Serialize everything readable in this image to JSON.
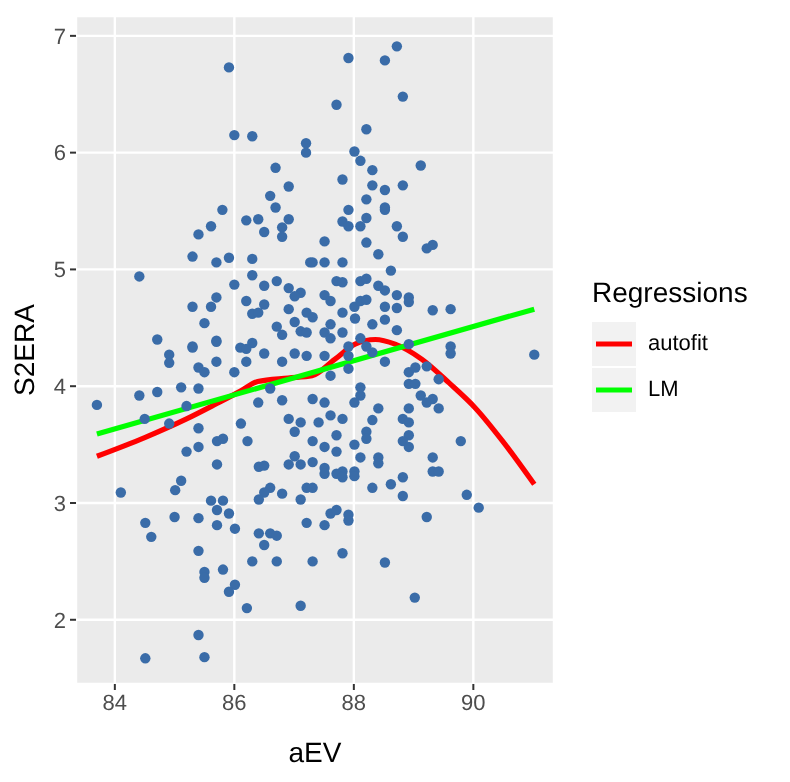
{
  "chart_data": {
    "type": "scatter",
    "xlabel": "aEV",
    "ylabel": "S2ERA",
    "legend_title": "Regressions",
    "legend": "right",
    "grid": true,
    "line_style": "solid",
    "xlim": [
      83.35,
      91.35
    ],
    "ylim": [
      1.45,
      7.17
    ],
    "xticks": [
      84,
      86,
      88,
      90
    ],
    "yticks": [
      2,
      3,
      4,
      5,
      6,
      7
    ],
    "series": [
      {
        "marker": "circle",
        "color": "#3a6ca8",
        "x": [
          85.91,
          86.0,
          86.3,
          87.2,
          87.2,
          86.69,
          86.91,
          86.6,
          86.69,
          85.8,
          86.91,
          86.2,
          86.4,
          85.61,
          86.5,
          86.8,
          86.8,
          85.4,
          85.3,
          85.7,
          85.91,
          86.3,
          87.27,
          84.41,
          86.0,
          86.3,
          86.5,
          86.71,
          86.91,
          87.11,
          87.01,
          85.3,
          85.7,
          85.61,
          86.2,
          86.5,
          86.3,
          86.4,
          86.91,
          87.21,
          85.5,
          87.01,
          86.71,
          87.11,
          84.71,
          85.3,
          85.7,
          86.1,
          86.3,
          86.8,
          88.72,
          87.91,
          88.52,
          88.82,
          87.71,
          88.21,
          88.01,
          88.11,
          88.31,
          89.12,
          87.81,
          88.31,
          88.52,
          88.82,
          88.21,
          88.52,
          88.52,
          87.91,
          87.81,
          87.91,
          88.11,
          88.21,
          88.72,
          88.82,
          87.51,
          88.21,
          89.22,
          89.32,
          88.41,
          87.31,
          87.51,
          87.81,
          88.62,
          87.71,
          87.81,
          88.11,
          88.21,
          88.41,
          88.52,
          88.72,
          88.92,
          88.92,
          87.51,
          87.61,
          88.01,
          88.11,
          88.21,
          88.52,
          88.72,
          89.32,
          89.62,
          87.31,
          87.81,
          88.02,
          88.52,
          88.31,
          87.61,
          88.72,
          87.21,
          87.51,
          87.81,
          87.61,
          88.11,
          88.92,
          87.91,
          85.3,
          84.91,
          84.91,
          85.7,
          86.2,
          85.4,
          85.5,
          85.7,
          86.0,
          86.2,
          86.5,
          86.8,
          87.01,
          87.21,
          83.7,
          84.41,
          84.71,
          85.11,
          85.4,
          84.5,
          84.91,
          85.2,
          85.4,
          85.71,
          85.81,
          86.11,
          86.22,
          86.4,
          86.6,
          86.8,
          86.91,
          87.01,
          87.11,
          87.01,
          86.91,
          87.11,
          87.21,
          85.2,
          85.4,
          85.71,
          85.11,
          86.41,
          86.5,
          86.6,
          86.5,
          86.41,
          86.8,
          87.11,
          84.1,
          85.01,
          85.61,
          85.81,
          85.71,
          85.91,
          85.0,
          85.4,
          85.71,
          86.01,
          84.51,
          84.61,
          86.41,
          86.6,
          86.5,
          86.71,
          85.4,
          86.3,
          86.71,
          85.5,
          85.5,
          85.81,
          86.01,
          85.91,
          86.21,
          87.11,
          85.4,
          84.51,
          85.5,
          91.02,
          89.62,
          89.62,
          88.92,
          89.03,
          89.22,
          89.42,
          88.92,
          89.03,
          89.12,
          89.32,
          89.22,
          89.42,
          88.92,
          88.82,
          88.92,
          88.92,
          88.82,
          88.92,
          88.41,
          88.31,
          88.11,
          88.11,
          87.91,
          87.91,
          88.52,
          88.31,
          88.21,
          88.01,
          88.21,
          88.21,
          88.01,
          88.11,
          88.41,
          88.41,
          88.01,
          88.01,
          87.71,
          87.81,
          87.61,
          87.51,
          87.41,
          87.31,
          87.51,
          87.71,
          87.31,
          87.51,
          87.51,
          87.81,
          87.71,
          87.81,
          87.31,
          88.31,
          88.62,
          88.82,
          89.32,
          89.32,
          89.42,
          88.82,
          89.79,
          89.89,
          90.09,
          89.22,
          87.61,
          87.71,
          87.91,
          87.91,
          87.51,
          87.21,
          87.81,
          87.31,
          88.52,
          89.02,
          87.51,
          87.61,
          87.31
        ],
        "values": [
          6.73,
          6.15,
          6.14,
          6.08,
          6.0,
          5.87,
          5.71,
          5.63,
          5.53,
          5.51,
          5.43,
          5.42,
          5.43,
          5.37,
          5.32,
          5.36,
          5.28,
          5.3,
          5.11,
          5.06,
          5.1,
          5.09,
          5.06,
          4.94,
          4.87,
          4.95,
          4.86,
          4.9,
          4.84,
          4.8,
          4.77,
          4.68,
          4.76,
          4.68,
          4.73,
          4.7,
          4.62,
          4.63,
          4.66,
          4.63,
          4.54,
          4.55,
          4.51,
          4.47,
          4.4,
          4.34,
          4.39,
          4.33,
          4.37,
          4.44,
          6.91,
          6.81,
          6.79,
          6.48,
          6.41,
          6.2,
          6.01,
          5.93,
          5.85,
          5.89,
          5.77,
          5.72,
          5.68,
          5.72,
          5.6,
          5.53,
          5.51,
          5.51,
          5.41,
          5.37,
          5.37,
          5.44,
          5.37,
          5.28,
          5.24,
          5.23,
          5.18,
          5.21,
          5.13,
          5.06,
          5.06,
          5.06,
          4.99,
          4.9,
          4.89,
          4.9,
          4.92,
          4.86,
          4.82,
          4.78,
          4.76,
          4.72,
          4.78,
          4.73,
          4.68,
          4.73,
          4.74,
          4.68,
          4.67,
          4.65,
          4.66,
          4.59,
          4.63,
          4.58,
          4.57,
          4.53,
          4.53,
          4.48,
          4.46,
          4.46,
          4.46,
          4.41,
          4.41,
          4.36,
          4.34,
          4.33,
          4.27,
          4.2,
          4.38,
          4.32,
          4.16,
          4.12,
          4.21,
          4.12,
          4.21,
          4.28,
          4.21,
          4.28,
          4.26,
          3.84,
          3.92,
          3.95,
          3.99,
          3.98,
          3.72,
          3.68,
          3.83,
          3.64,
          3.53,
          3.55,
          3.68,
          3.53,
          3.86,
          3.98,
          3.88,
          3.72,
          3.61,
          3.69,
          3.4,
          3.33,
          3.33,
          3.13,
          3.44,
          3.48,
          3.33,
          3.19,
          3.31,
          3.32,
          3.13,
          3.09,
          3.03,
          3.08,
          3.03,
          3.09,
          3.11,
          3.02,
          3.02,
          2.94,
          2.91,
          2.88,
          2.87,
          2.81,
          2.78,
          2.83,
          2.71,
          2.74,
          2.74,
          2.64,
          2.72,
          2.59,
          2.5,
          2.5,
          2.41,
          2.36,
          2.43,
          2.3,
          2.24,
          2.1,
          2.12,
          1.87,
          1.67,
          1.68,
          4.27,
          4.34,
          4.28,
          4.12,
          4.16,
          4.17,
          4.06,
          4.02,
          4.02,
          3.92,
          3.89,
          3.86,
          3.81,
          3.81,
          3.72,
          3.69,
          3.58,
          3.53,
          3.48,
          3.81,
          3.71,
          3.92,
          3.99,
          4.15,
          4.26,
          4.21,
          4.29,
          4.34,
          3.86,
          3.61,
          3.55,
          3.5,
          3.39,
          3.39,
          3.34,
          3.27,
          3.23,
          3.58,
          3.72,
          3.75,
          3.86,
          3.69,
          3.53,
          3.48,
          3.44,
          3.35,
          3.3,
          3.25,
          3.27,
          3.25,
          3.22,
          3.13,
          3.13,
          3.16,
          3.22,
          3.39,
          3.27,
          3.27,
          3.06,
          3.53,
          3.07,
          2.96,
          2.88,
          2.91,
          2.94,
          2.9,
          2.85,
          2.81,
          2.83,
          2.57,
          2.5,
          2.49,
          2.19,
          4.26,
          4.09,
          3.89
        ]
      },
      {
        "type": "line",
        "marker": "none",
        "name": "autofit",
        "color": "#ff0000",
        "x": [
          83.7,
          84.5,
          85.2,
          85.7,
          86.11,
          86.39,
          86.9,
          87.3,
          87.68,
          88.02,
          88.36,
          88.69,
          89.14,
          89.59,
          90.04,
          90.49,
          91.02
        ],
        "values": [
          3.4,
          3.56,
          3.72,
          3.85,
          3.96,
          4.04,
          4.07,
          4.09,
          4.23,
          4.36,
          4.4,
          4.36,
          4.23,
          4.03,
          3.81,
          3.53,
          3.16
        ]
      },
      {
        "type": "line",
        "marker": "none",
        "name": "LM",
        "color": "#00ff00",
        "x": [
          83.7,
          91.02
        ],
        "values": [
          3.59,
          4.66
        ]
      }
    ]
  }
}
